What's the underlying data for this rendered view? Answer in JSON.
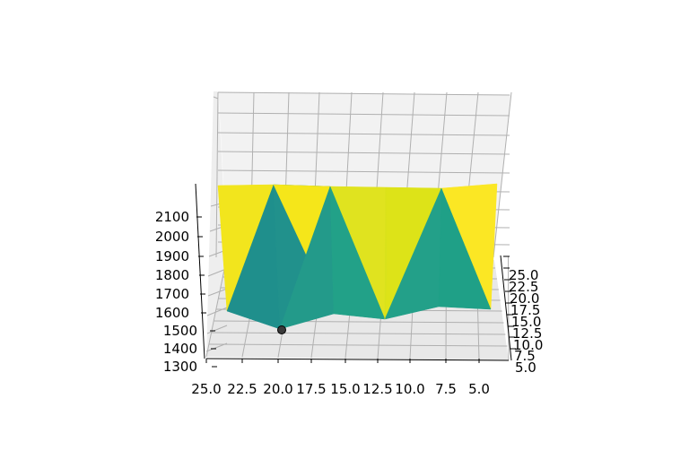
{
  "chart_data": {
    "type": "surface3d",
    "title": "",
    "xlabel": "",
    "ylabel": "",
    "zlabel": "",
    "x_ticks": [
      "25.0",
      "22.5",
      "20.0",
      "17.5",
      "15.0",
      "12.5",
      "10.0",
      "7.5",
      "5.0"
    ],
    "y_ticks": [
      "25.0",
      "22.5",
      "20.0",
      "17.5",
      "15.0",
      "12.5",
      "10.0",
      "7.5",
      "5.0"
    ],
    "z_ticks": [
      "2100",
      "2000",
      "1900",
      "1800",
      "1700",
      "1600",
      "1500",
      "1400",
      "1300"
    ],
    "xlim": [
      4,
      26
    ],
    "ylim": [
      4,
      26
    ],
    "zlim": [
      1300,
      2150
    ],
    "colormap": "viridis",
    "grid": true,
    "marker": {
      "x": 20,
      "y": 20,
      "z": 1540,
      "color": "#3a3a3a"
    },
    "surface_facets": [
      {
        "label": "peak-25",
        "color": "#f2e51d"
      },
      {
        "label": "valley-20",
        "color": "#21918c"
      },
      {
        "label": "peak-16",
        "color": "#e0e31f"
      },
      {
        "label": "valley-13",
        "color": "#22a188"
      },
      {
        "label": "peak-9",
        "color": "#dde318"
      },
      {
        "label": "valley-5",
        "color": "#1fa087"
      }
    ]
  }
}
